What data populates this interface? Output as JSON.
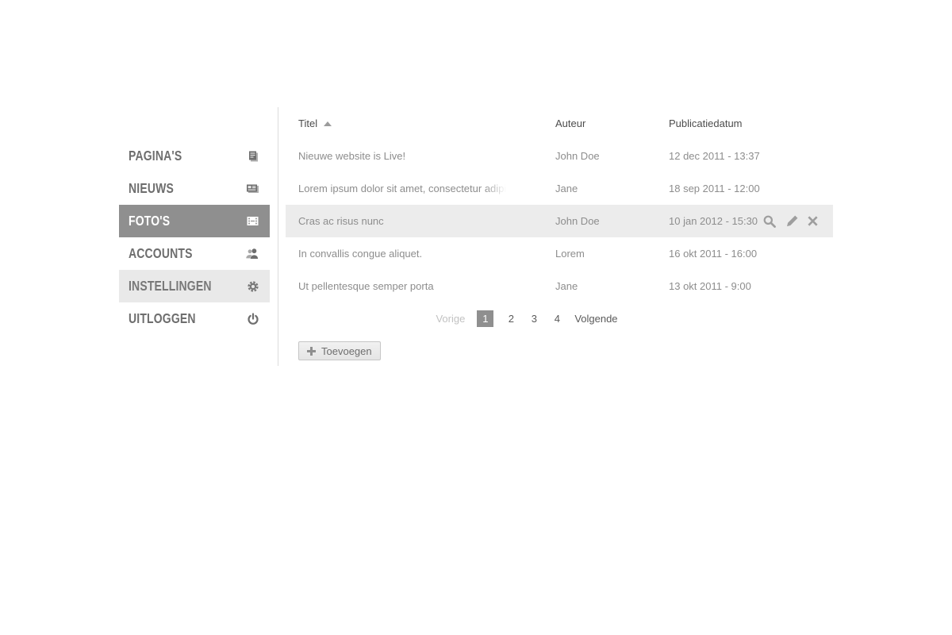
{
  "colors": {
    "active_bg": "#8f8f8f",
    "hover_bg": "#e9e9e9",
    "selected_row_bg": "#ececec"
  },
  "sidebar": {
    "items": [
      {
        "label": "PAGINA'S",
        "icon": "pages-icon",
        "state": "normal"
      },
      {
        "label": "NIEUWS",
        "icon": "news-icon",
        "state": "normal"
      },
      {
        "label": "FOTO'S",
        "icon": "film-icon",
        "state": "active"
      },
      {
        "label": "ACCOUNTS",
        "icon": "accounts-icon",
        "state": "normal"
      },
      {
        "label": "INSTELLINGEN",
        "icon": "gear-icon",
        "state": "hover"
      },
      {
        "label": "UITLOGGEN",
        "icon": "power-icon",
        "state": "normal"
      }
    ]
  },
  "table": {
    "columns": [
      "Titel",
      "Auteur",
      "Publicatiedatum"
    ],
    "sort": {
      "column": "Titel",
      "direction": "asc"
    },
    "rows": [
      {
        "titel": "Nieuwe website is Live!",
        "auteur": "John Doe",
        "publicatiedatum": "12 dec 2011 - 13:37",
        "selected": false,
        "truncated": false
      },
      {
        "titel": "Lorem ipsum dolor sit amet, consectetur adipi",
        "auteur": "Jane",
        "publicatiedatum": "18 sep 2011 - 12:00",
        "selected": false,
        "truncated": true
      },
      {
        "titel": "Cras ac risus nunc",
        "auteur": "John Doe",
        "publicatiedatum": "10 jan 2012 - 15:30",
        "selected": true,
        "truncated": false,
        "actions": [
          {
            "name": "bekijken",
            "icon": "search-icon"
          },
          {
            "name": "bewerken",
            "icon": "pencil-icon"
          },
          {
            "name": "verwijderen",
            "icon": "x-icon"
          }
        ]
      },
      {
        "titel": "In convallis congue aliquet.",
        "auteur": "Lorem",
        "publicatiedatum": "16 okt 2011 - 16:00",
        "selected": false,
        "truncated": false
      },
      {
        "titel": "Ut pellentesque semper porta",
        "auteur": "Jane",
        "publicatiedatum": "13 okt 2011 - 9:00",
        "selected": false,
        "truncated": false
      }
    ]
  },
  "pagination": {
    "previous_label": "Vorige",
    "pages": [
      "1",
      "2",
      "3",
      "4"
    ],
    "active_page": "1",
    "next_label": "Volgende"
  },
  "add_button": {
    "label": "Toevoegen"
  }
}
